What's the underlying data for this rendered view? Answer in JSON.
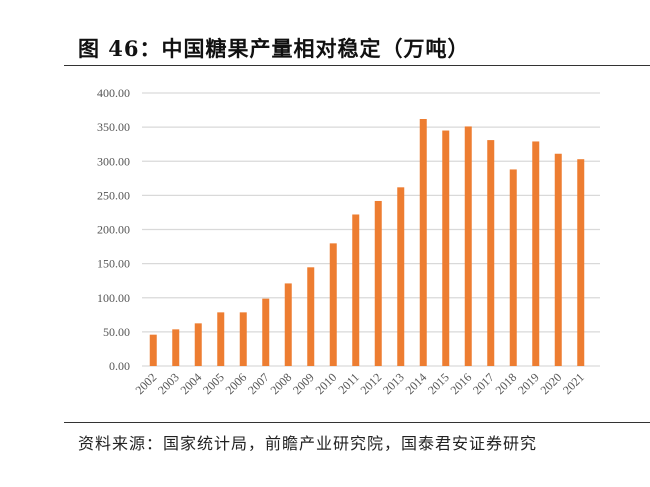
{
  "chart_data": {
    "type": "bar",
    "title": "图 46：中国糖果产量相对稳定（万吨）",
    "xlabel": "",
    "ylabel": "",
    "categories": [
      "2002",
      "2003",
      "2004",
      "2005",
      "2006",
      "2007",
      "2008",
      "2009",
      "2010",
      "2011",
      "2012",
      "2013",
      "2014",
      "2015",
      "2016",
      "2017",
      "2018",
      "2019",
      "2020",
      "2021"
    ],
    "values": [
      45.9,
      53.7,
      62.5,
      78.6,
      78.6,
      98.7,
      121,
      144.6,
      179.7,
      222,
      241.8,
      261.8,
      361.9,
      345,
      351,
      331,
      288,
      329,
      311,
      303
    ],
    "ylim": [
      0,
      400
    ],
    "yticks": [
      "0.00",
      "50.00",
      "100.00",
      "150.00",
      "200.00",
      "250.00",
      "300.00",
      "350.00",
      "400.00"
    ],
    "grid": true,
    "legend": "none",
    "bar_color": "#ED7D31",
    "grid_color": "#D9D9D9"
  },
  "source": "资料来源：国家统计局，前瞻产业研究院，国泰君安证券研究"
}
